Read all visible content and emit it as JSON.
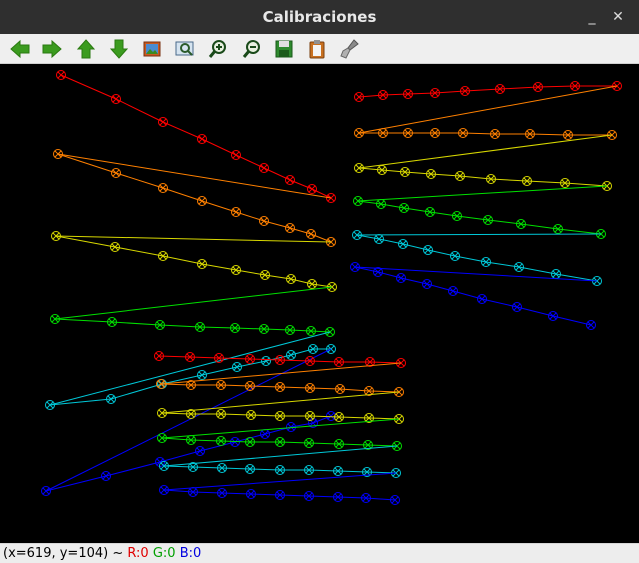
{
  "window": {
    "title": "Calibraciones"
  },
  "controls": {
    "minimize": "_",
    "close": "✕"
  },
  "toolbar": {
    "buttons": [
      {
        "name": "back-button",
        "icon": "arrow-left-icon"
      },
      {
        "name": "forward-button",
        "icon": "arrow-right-icon"
      },
      {
        "name": "up-button",
        "icon": "arrow-up-icon"
      },
      {
        "name": "down-button",
        "icon": "arrow-down-icon"
      },
      {
        "name": "image-button",
        "icon": "image-icon"
      },
      {
        "name": "zoom-region-button",
        "icon": "zoom-region-icon"
      },
      {
        "name": "zoom-in-button",
        "icon": "zoom-in-icon"
      },
      {
        "name": "zoom-out-button",
        "icon": "zoom-out-icon"
      },
      {
        "name": "save-button",
        "icon": "save-icon"
      },
      {
        "name": "copy-button",
        "icon": "clipboard-icon"
      },
      {
        "name": "properties-button",
        "icon": "brush-icon"
      }
    ]
  },
  "status": {
    "coords": "(x=619, y=104) ~ ",
    "r": "R:0",
    "g": "G:0",
    "b": "B:0"
  },
  "colors": {
    "red": "#ff0000",
    "orange": "#ff8000",
    "yellow": "#d8d800",
    "green": "#00e000",
    "cyan": "#00c8d8",
    "blue": "#0000ff"
  },
  "chessboards": [
    {
      "rows": [
        {
          "color": "red",
          "points": [
            [
              0,
              0
            ],
            [
              1,
              0
            ],
            [
              2,
              0
            ],
            [
              3,
              0
            ],
            [
              4,
              0
            ],
            [
              5,
              0
            ],
            [
              6,
              0
            ],
            [
              7,
              0
            ],
            [
              8,
              0
            ]
          ]
        },
        {
          "color": "orange",
          "points": [
            [
              0,
              1
            ],
            [
              1,
              1
            ],
            [
              2,
              1
            ],
            [
              3,
              1
            ],
            [
              4,
              1
            ],
            [
              5,
              1
            ],
            [
              6,
              1
            ],
            [
              7,
              1
            ],
            [
              8,
              1
            ]
          ]
        },
        {
          "color": "yellow",
          "points": [
            [
              0,
              2
            ],
            [
              1,
              2
            ],
            [
              2,
              2
            ],
            [
              3,
              2
            ],
            [
              4,
              2
            ],
            [
              5,
              2
            ],
            [
              6,
              2
            ],
            [
              7,
              2
            ],
            [
              8,
              2
            ]
          ]
        },
        {
          "color": "green",
          "points": [
            [
              0,
              3
            ],
            [
              1,
              3
            ],
            [
              2,
              3
            ],
            [
              3,
              3
            ],
            [
              4,
              3
            ],
            [
              5,
              3
            ],
            [
              6,
              3
            ],
            [
              7,
              3
            ],
            [
              8,
              3
            ]
          ]
        },
        {
          "color": "cyan",
          "points": [
            [
              0,
              4
            ],
            [
              1,
              4
            ],
            [
              2,
              4
            ],
            [
              3,
              4
            ],
            [
              4,
              4
            ],
            [
              5,
              4
            ],
            [
              6,
              4
            ],
            [
              7,
              4
            ],
            [
              8,
              4
            ]
          ]
        },
        {
          "color": "blue",
          "points": [
            [
              0,
              5
            ],
            [
              1,
              5
            ],
            [
              2,
              5
            ],
            [
              3,
              5
            ],
            [
              4,
              5
            ],
            [
              5,
              5
            ],
            [
              6,
              5
            ],
            [
              7,
              5
            ],
            [
              8,
              5
            ]
          ]
        }
      ]
    }
  ]
}
